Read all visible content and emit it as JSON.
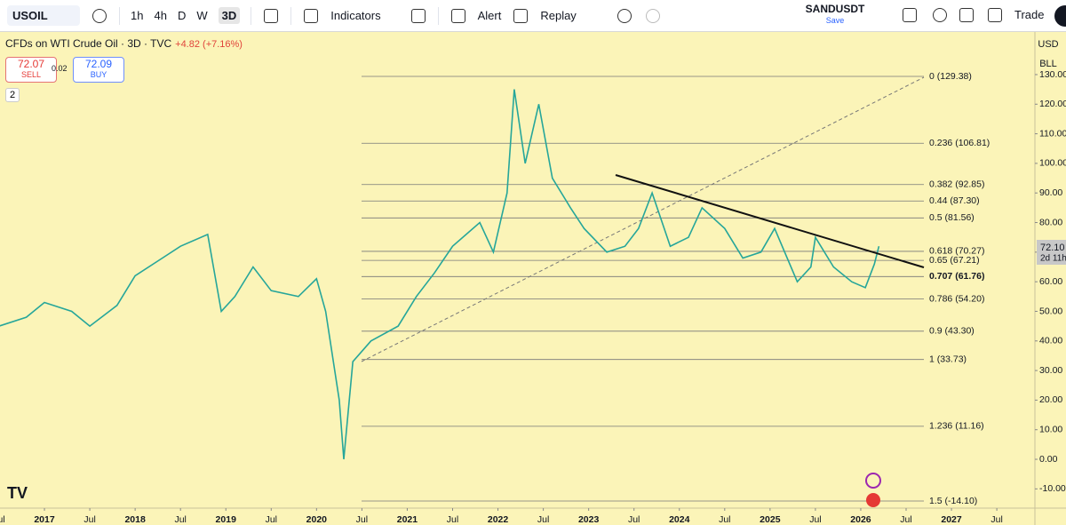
{
  "toolbar": {
    "symbol": "USOIL",
    "intervals": [
      "1h",
      "4h",
      "D",
      "W",
      "3D"
    ],
    "indicators": "Indicators",
    "alert": "Alert",
    "replay": "Replay",
    "layout_name": "SANDUSDT",
    "save": "Save",
    "trade": "Trade"
  },
  "legend": {
    "title": "CFDs on WTI Crude Oil · 3D · TVC",
    "change": "+4.82 (+7.16%)",
    "sell_price": "72.07",
    "sell": "SELL",
    "spread": "0.02",
    "buy_price": "72.09",
    "buy": "BUY",
    "count": "2"
  },
  "price_axis": {
    "currency": "USD",
    "unit": "BLL",
    "last_price": "72.10",
    "countdown": "2d 11h"
  },
  "chart_data": {
    "type": "line",
    "color": "#26a69a",
    "x": [
      2016.5,
      2016.8,
      2017.0,
      2017.3,
      2017.5,
      2017.8,
      2018.0,
      2018.3,
      2018.5,
      2018.8,
      2018.95,
      2019.1,
      2019.3,
      2019.5,
      2019.8,
      2020.0,
      2020.1,
      2020.25,
      2020.3,
      2020.4,
      2020.6,
      2020.9,
      2021.1,
      2021.3,
      2021.5,
      2021.8,
      2021.95,
      2022.1,
      2022.18,
      2022.3,
      2022.45,
      2022.6,
      2022.8,
      2022.95,
      2023.2,
      2023.4,
      2023.55,
      2023.7,
      2023.9,
      2024.1,
      2024.25,
      2024.5,
      2024.7,
      2024.9,
      2025.05,
      2025.3,
      2025.45,
      2025.5,
      2025.7,
      2025.9,
      2026.05,
      2026.15,
      2026.2
    ],
    "values": [
      45,
      48,
      53,
      50,
      45,
      52,
      62,
      68,
      72,
      76,
      50,
      55,
      65,
      57,
      55,
      61,
      50,
      20,
      0,
      33,
      40,
      45,
      55,
      63,
      72,
      80,
      70,
      90,
      125,
      100,
      120,
      95,
      85,
      78,
      70,
      72,
      78,
      90,
      72,
      75,
      85,
      78,
      68,
      70,
      78,
      60,
      65,
      75,
      65,
      60,
      58,
      66,
      72
    ],
    "xlim": [
      2016.51,
      2027.92
    ],
    "xticks": [
      {
        "value": 2016.5,
        "label": "Jul"
      },
      2017,
      {
        "value": 2017.5,
        "label": "Jul"
      },
      2018,
      {
        "value": 2018.5,
        "label": "Jul"
      },
      2019,
      {
        "value": 2019.5,
        "label": "Jul"
      },
      2020,
      {
        "value": 2020.5,
        "label": "Jul"
      },
      2021,
      {
        "value": 2021.5,
        "label": "Jul"
      },
      2022,
      {
        "value": 2022.5,
        "label": "Jul"
      },
      2023,
      {
        "value": 2023.5,
        "label": "Jul"
      },
      2024,
      {
        "value": 2024.5,
        "label": "Jul"
      },
      2025,
      {
        "value": 2025.5,
        "label": "Jul"
      },
      2026,
      {
        "value": 2026.5,
        "label": "Jul"
      },
      2027,
      {
        "value": 2027.5,
        "label": "Jul"
      }
    ],
    "ylim": [
      -17.7,
      144.4
    ],
    "yticks": [
      {
        "value": -10,
        "label": "-10.00"
      },
      {
        "value": 0,
        "label": "0.00"
      },
      {
        "value": 10,
        "label": "10.00"
      },
      {
        "value": 20,
        "label": "20.00"
      },
      {
        "value": 30,
        "label": "30.00"
      },
      {
        "value": 40,
        "label": "40.00"
      },
      {
        "value": 50,
        "label": "50.00"
      },
      {
        "value": 60,
        "label": "60.00"
      },
      {
        "value": 70,
        "label": "70.00"
      },
      {
        "value": 80,
        "label": "80.00"
      },
      {
        "value": 90,
        "label": "90.00"
      },
      {
        "value": 100,
        "label": "100.00"
      },
      {
        "value": 110,
        "label": "110.00"
      },
      {
        "value": 120,
        "label": "120.00"
      },
      {
        "value": 130,
        "label": "130.00"
      }
    ],
    "fib_levels": [
      {
        "label": "0 (129.38)",
        "value": 129.38
      },
      {
        "label": "0.236 (106.81)",
        "value": 106.81
      },
      {
        "label": "0.382 (92.85)",
        "value": 92.85
      },
      {
        "label": "0.44 (87.30)",
        "value": 87.3
      },
      {
        "label": "0.5 (81.56)",
        "value": 81.56
      },
      {
        "label": "0.618 (70.27)",
        "value": 70.27
      },
      {
        "label": "0.65 (67.21)",
        "value": 67.21
      },
      {
        "label": "0.707 (61.76)",
        "value": 61.76
      },
      {
        "label": "0.786 (54.20)",
        "value": 54.2
      },
      {
        "label": "0.9 (43.30)",
        "value": 43.3
      },
      {
        "label": "1 (33.73)",
        "value": 33.73
      },
      {
        "label": "1.236 (11.16)",
        "value": 11.16
      },
      {
        "label": "1.5 (-14.10)",
        "value": -14.1
      }
    ]
  }
}
